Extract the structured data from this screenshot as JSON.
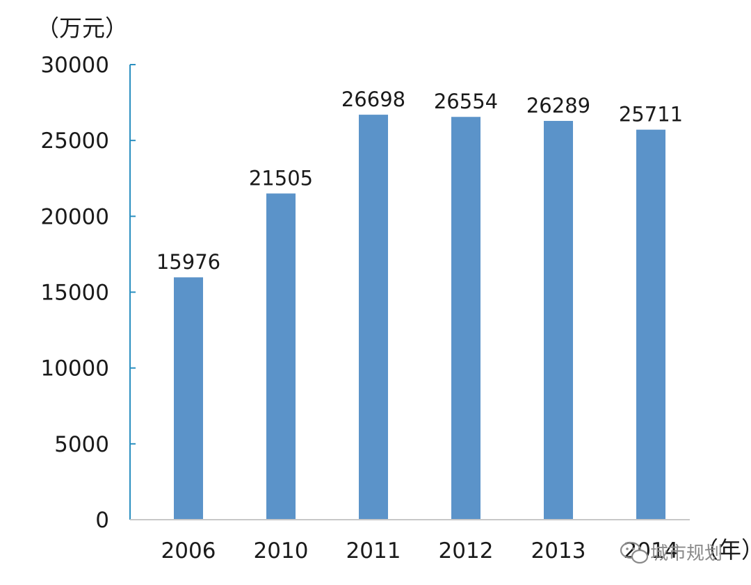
{
  "chart_data": {
    "type": "bar",
    "y_unit_label": "（万元）",
    "x_unit_label": "（年）",
    "categories": [
      "2006",
      "2010",
      "2011",
      "2012",
      "2013",
      "2014"
    ],
    "values": [
      15976,
      21505,
      26698,
      26554,
      26289,
      25711
    ],
    "data_labels": [
      "15976",
      "21505",
      "26698",
      "26554",
      "26289",
      "25711"
    ],
    "ylim": [
      0,
      30000
    ],
    "yticks": [
      0,
      5000,
      10000,
      15000,
      20000,
      25000,
      30000
    ],
    "ytick_labels": [
      "0",
      "5000",
      "10000",
      "15000",
      "20000",
      "25000",
      "30000"
    ],
    "grid": false,
    "legend": "none",
    "bar_color": "#5b93c9",
    "axis_color": "#2a8fc0"
  },
  "watermark": {
    "icon": "wechat-icon",
    "text": "城市规划"
  }
}
